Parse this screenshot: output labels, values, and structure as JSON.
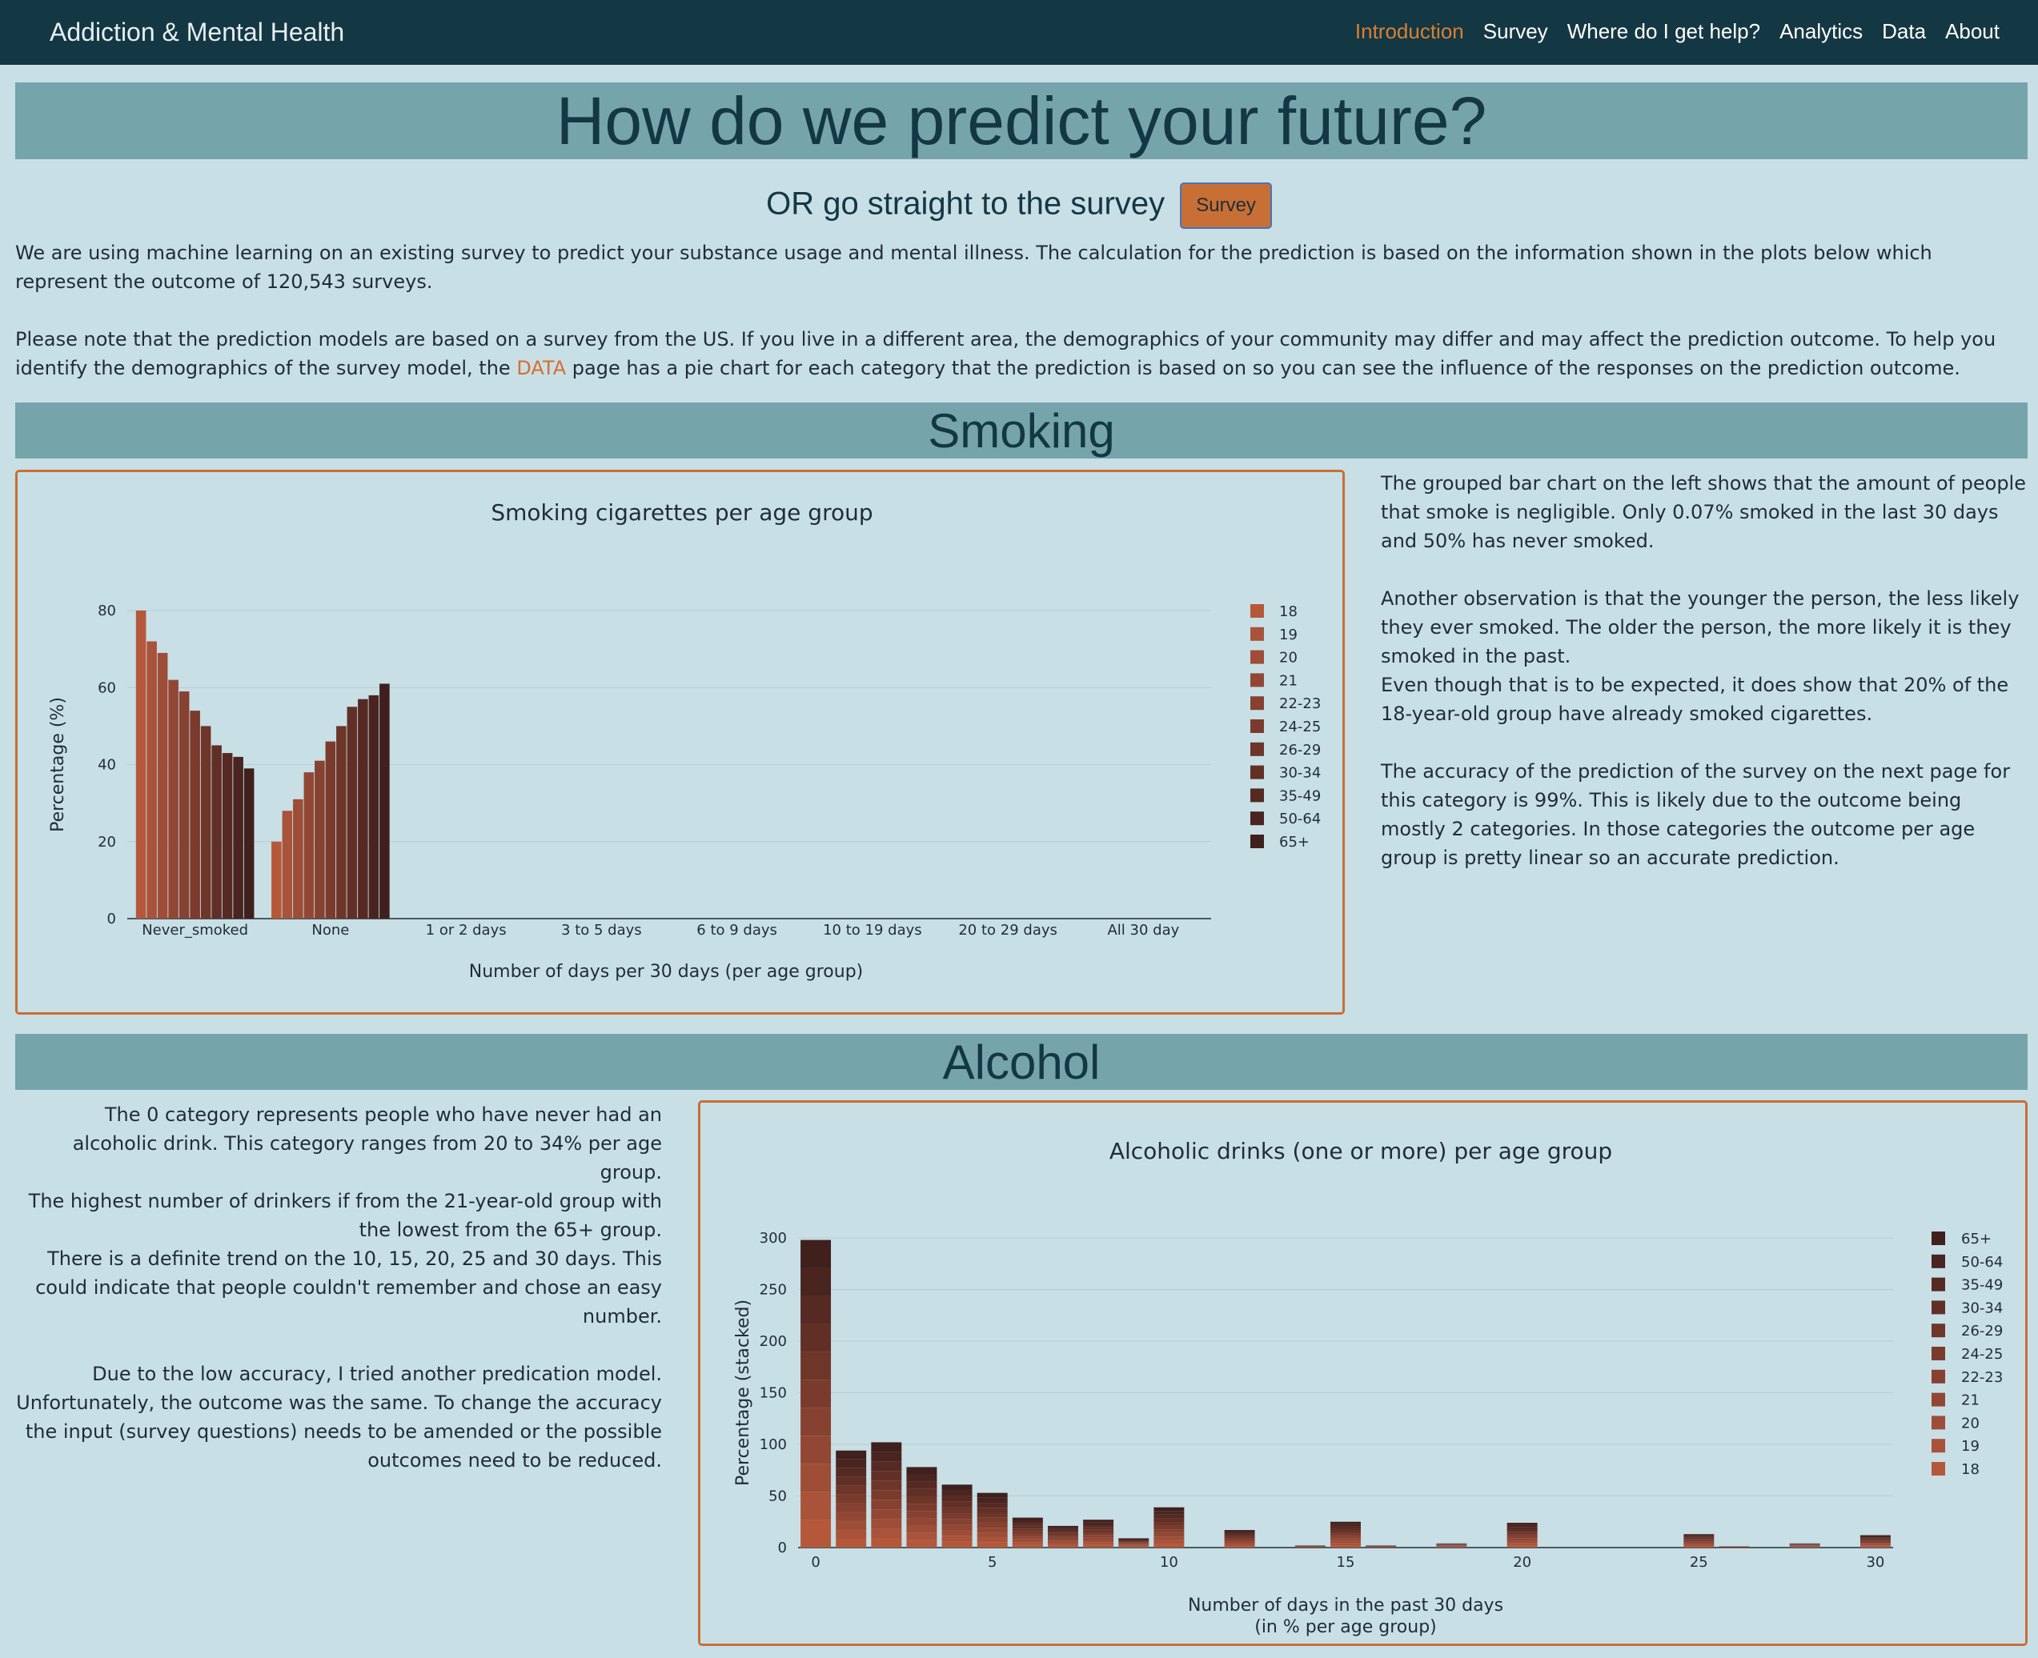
{
  "nav": {
    "brand": "Addiction & Mental Health",
    "links": [
      "Introduction",
      "Survey",
      "Where do I get help?",
      "Analytics",
      "Data",
      "About"
    ],
    "active_index": 0,
    "active_color": "#d98032"
  },
  "hero": {
    "title": "How do we predict your future?",
    "subtitle": "OR go straight to the survey",
    "survey_button": "Survey"
  },
  "intro": {
    "p1": "We are using machine learning on an existing survey to predict your substance usage and mental illness. The calculation for the prediction is based on the information shown in the plots below which represent the outcome of 120,543 surveys.",
    "p2_before": "Please note that the prediction models are based on a survey from the US. If you live in a different area, the demographics of your community may differ and may affect the prediction outcome. To help you identify the demographics of the survey model, the ",
    "p2_link": "DATA",
    "p2_after": " page has a pie chart for each category that the prediction is based on so you can see the influence of the responses on the prediction outcome."
  },
  "smoking": {
    "heading": "Smoking",
    "text": [
      "The grouped bar chart on the left shows that the amount of people that smoke is negligible. Only 0.07% smoked in the last 30 days and 50% has never smoked.",
      "",
      "Another observation is that the younger the person, the less likely they ever smoked. The older the person, the more likely it is they smoked in the past.",
      "Even though that is to be expected, it does show that 20% of the 18-year-old group have already smoked cigarettes.",
      "",
      "The accuracy of the prediction of the survey on the next page for this category is 99%. This is likely due to the outcome being mostly 2 categories. In those categories the outcome per age group is pretty linear so an accurate prediction."
    ]
  },
  "alcohol": {
    "heading": "Alcohol",
    "text": [
      "The 0 category represents people who have never had an alcoholic drink. This category ranges from 20 to 34% per age group.",
      "The highest number of drinkers if from the 21-year-old group with the lowest from the 65+ group.",
      "There is a definite trend on the 10, 15, 20, 25 and 30 days. This could indicate that people couldn't remember and chose an easy number.",
      "",
      "Due to the low accuracy, I tried another predication model. Unfortunately, the outcome was the same. To change the accuracy the input (survey questions) needs to be amended or the possible outcomes need to be reduced."
    ]
  },
  "chart_data": [
    {
      "type": "bar",
      "mode": "grouped",
      "title": "Smoking cigarettes per age group",
      "xlabel": "Number of days per 30 days (per age group)",
      "ylabel": "Percentage (%)",
      "ylim": [
        0,
        80
      ],
      "yticks": [
        0,
        20,
        40,
        60,
        80
      ],
      "grid": true,
      "legend_position": "right",
      "categories": [
        "Never_smoked",
        "None",
        "1 or 2 days",
        "3 to 5 days",
        "6 to 9 days",
        "10 to 19 days",
        "20 to 29 days",
        "All 30 day"
      ],
      "series": [
        {
          "name": "18",
          "color": "#b5583a",
          "values": [
            80,
            20,
            0,
            0,
            0,
            0,
            0,
            0
          ]
        },
        {
          "name": "19",
          "color": "#a9533a",
          "values": [
            72,
            28,
            0,
            0,
            0,
            0,
            0,
            0
          ]
        },
        {
          "name": "20",
          "color": "#9e4d37",
          "values": [
            69,
            31,
            0,
            0,
            0,
            0,
            0,
            0
          ]
        },
        {
          "name": "21",
          "color": "#924734",
          "values": [
            62,
            38,
            0,
            0,
            0,
            0,
            0,
            0
          ]
        },
        {
          "name": "22-23",
          "color": "#864130",
          "values": [
            59,
            41,
            0,
            0,
            0,
            0,
            0,
            0
          ]
        },
        {
          "name": "24-25",
          "color": "#7a3b2d",
          "values": [
            54,
            46,
            0,
            0,
            0,
            0,
            0,
            0
          ]
        },
        {
          "name": "26-29",
          "color": "#6e3529",
          "values": [
            50,
            50,
            0,
            0,
            0,
            0,
            0,
            0
          ]
        },
        {
          "name": "30-34",
          "color": "#622f26",
          "values": [
            45,
            55,
            0,
            0,
            0,
            0,
            0,
            0
          ]
        },
        {
          "name": "35-49",
          "color": "#562922",
          "values": [
            43,
            57,
            0,
            0,
            0,
            0,
            0,
            0
          ]
        },
        {
          "name": "50-64",
          "color": "#4a241f",
          "values": [
            42,
            58,
            0,
            0,
            0,
            0,
            0,
            0
          ]
        },
        {
          "name": "65+",
          "color": "#3f201c",
          "values": [
            39,
            61,
            0,
            0,
            0,
            0,
            0,
            0
          ]
        }
      ]
    },
    {
      "type": "bar",
      "mode": "stacked",
      "title": "Alcoholic drinks (one or more) per age group",
      "xlabel": "Number of days in the past 30 days",
      "xlabel2": "(in % per age group)",
      "ylabel": "Percentage (stacked)",
      "ylim": [
        0,
        300
      ],
      "yticks": [
        0,
        50,
        100,
        150,
        200,
        250,
        300
      ],
      "xticks": [
        0,
        5,
        10,
        15,
        20,
        25,
        30
      ],
      "grid": true,
      "legend_position": "right",
      "x": [
        0,
        1,
        2,
        3,
        4,
        5,
        6,
        7,
        8,
        9,
        10,
        11,
        12,
        13,
        14,
        15,
        16,
        17,
        18,
        19,
        20,
        21,
        22,
        23,
        24,
        25,
        26,
        27,
        28,
        29,
        30
      ],
      "totals": [
        298,
        94,
        102,
        78,
        61,
        53,
        29,
        21,
        27,
        9,
        39,
        0,
        17,
        0,
        2,
        25,
        2,
        0,
        4,
        0,
        24,
        0,
        0,
        0,
        0,
        13,
        1,
        0,
        4,
        0,
        12
      ],
      "series_names": [
        "18",
        "19",
        "20",
        "21",
        "22-23",
        "24-25",
        "26-29",
        "30-34",
        "35-49",
        "50-64",
        "65+"
      ],
      "series_colors": [
        "#b5583a",
        "#a9533a",
        "#9e4d37",
        "#924734",
        "#864130",
        "#7a3b2d",
        "#6e3529",
        "#622f26",
        "#562922",
        "#4a241f",
        "#3f201c"
      ],
      "legend_order": [
        "65+",
        "50-64",
        "35-49",
        "30-34",
        "26-29",
        "24-25",
        "22-23",
        "21",
        "20",
        "19",
        "18"
      ]
    }
  ]
}
